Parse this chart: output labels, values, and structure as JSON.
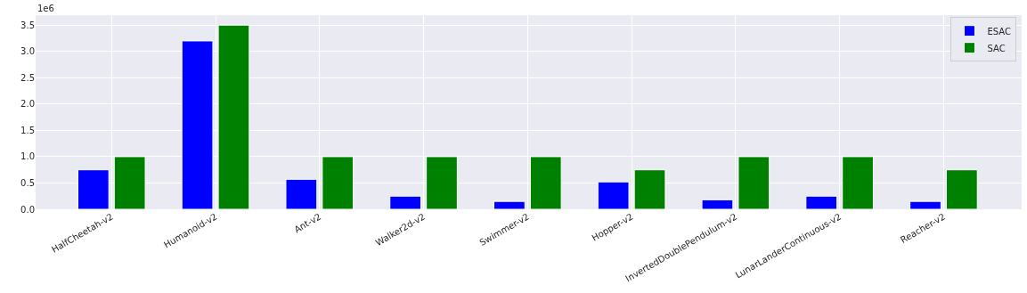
{
  "chart_data": {
    "type": "bar",
    "categories": [
      "HalfCheetah-v2",
      "Humanoid-v2",
      "Ant-v2",
      "Walker2d-v2",
      "Swimmer-v2",
      "Hopper-v2",
      "InvertedDoublePendulum-v2",
      "LunarLanderContinuous-v2",
      "Reacher-v2"
    ],
    "series": [
      {
        "name": "ESAC",
        "color": "#0000ff",
        "values": [
          0.75,
          3.2,
          0.57,
          0.25,
          0.15,
          0.52,
          0.18,
          0.25,
          0.15
        ]
      },
      {
        "name": "SAC",
        "color": "#008000",
        "values": [
          1.0,
          3.5,
          1.0,
          1.0,
          1.0,
          0.75,
          1.0,
          1.0,
          0.75
        ]
      }
    ],
    "ylim": [
      0,
      3.69
    ],
    "yticks": [
      {
        "value": 0,
        "label": "0.0"
      },
      0.5,
      {
        "value": 1,
        "label": "1.0"
      },
      1.5,
      {
        "value": 2,
        "label": "2.0"
      },
      2.5,
      {
        "value": 3,
        "label": "3.0"
      },
      3.5
    ],
    "annotations": [
      "1e6"
    ],
    "grid": true,
    "legend": "top right"
  }
}
